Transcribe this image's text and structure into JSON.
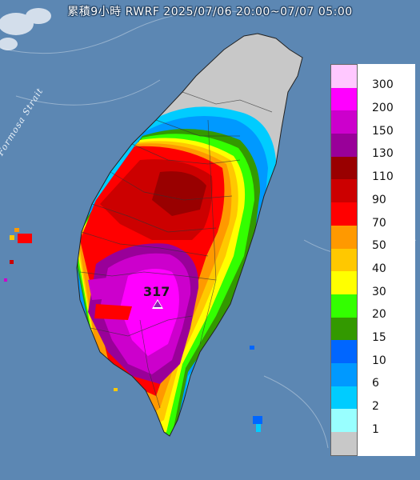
{
  "title": "累積9小時 RWRF 2025/07/06 20:00~07/07 05:00",
  "strait_label": "Formosa Strait",
  "max_station_value": "317",
  "legend": [
    {
      "label": "300",
      "color": "#ffc8ff"
    },
    {
      "label": "200",
      "color": "#ff00ff"
    },
    {
      "label": "150",
      "color": "#cc00cc"
    },
    {
      "label": "130",
      "color": "#990099"
    },
    {
      "label": "110",
      "color": "#990000"
    },
    {
      "label": "90",
      "color": "#cc0000"
    },
    {
      "label": "70",
      "color": "#ff0000"
    },
    {
      "label": "50",
      "color": "#ff9900"
    },
    {
      "label": "40",
      "color": "#ffc800"
    },
    {
      "label": "30",
      "color": "#ffff00"
    },
    {
      "label": "20",
      "color": "#33ff00"
    },
    {
      "label": "15",
      "color": "#339900"
    },
    {
      "label": "10",
      "color": "#0066ff"
    },
    {
      "label": "6",
      "color": "#0099ff"
    },
    {
      "label": "2",
      "color": "#00ccff"
    },
    {
      "label": "1",
      "color": "#99ffff"
    },
    {
      "label": "",
      "color": "#c8c8c8"
    }
  ]
}
